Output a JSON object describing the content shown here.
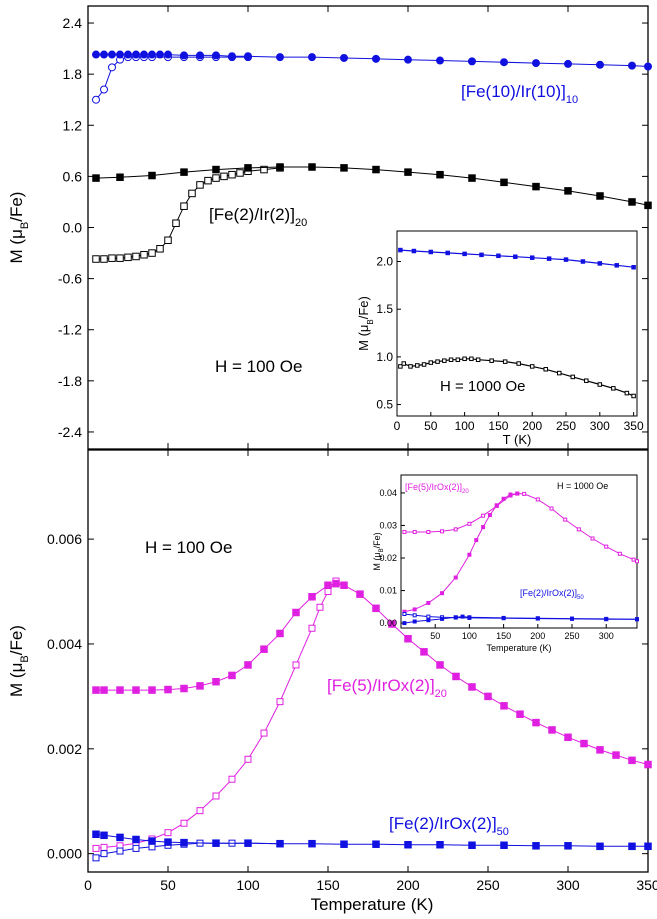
{
  "figure": {
    "xlabel": "Temperature (K)"
  },
  "chart_data": [
    {
      "type": "scatter",
      "panel": "top",
      "ylabel_main": "M (μ",
      "ylabel_sub": "B",
      "ylabel_tail": "/Fe)",
      "xlim": [
        0,
        350
      ],
      "ylim": [
        -2.6,
        2.6
      ],
      "yticks": [
        "-2.4",
        "-1.8",
        "-1.2",
        "-0.6",
        "0.0",
        "0.6",
        "1.2",
        "1.8",
        "2.4"
      ],
      "ytick_values": [
        -2.4,
        -1.8,
        -1.2,
        -0.6,
        0.0,
        0.6,
        1.2,
        1.8,
        2.4
      ],
      "field_label": "H = 100 Oe",
      "legend": "none",
      "series": [
        {
          "label_main": "[Fe(10)/Ir(10)]",
          "label_sub": "10",
          "color": "#1010e0",
          "marker": "circle",
          "fc": {
            "x": [
              5,
              10,
              15,
              20,
              25,
              30,
              35,
              40,
              45,
              50,
              60,
              70,
              80,
              90,
              100,
              120,
              140,
              160,
              180,
              200,
              220,
              240,
              260,
              280,
              300,
              320,
              340,
              350
            ],
            "y": [
              2.03,
              2.03,
              2.03,
              2.03,
              2.03,
              2.03,
              2.03,
              2.03,
              2.03,
              2.03,
              2.02,
              2.02,
              2.02,
              2.01,
              2.01,
              2.0,
              2.0,
              1.99,
              1.98,
              1.97,
              1.96,
              1.95,
              1.94,
              1.93,
              1.92,
              1.91,
              1.9,
              1.89
            ]
          },
          "zfc": {
            "x": [
              5,
              10,
              15,
              20,
              25,
              30,
              35,
              40,
              50,
              60,
              70,
              80,
              90,
              100
            ],
            "y": [
              1.5,
              1.62,
              1.88,
              1.97,
              2.0,
              2.0,
              2.0,
              2.0,
              2.0,
              2.0,
              2.0,
              2.0,
              2.0,
              2.0
            ]
          }
        },
        {
          "label_main": "[Fe(2)/Ir(2)]",
          "label_sub": "20",
          "color": "#000000",
          "marker": "square",
          "fc": {
            "x": [
              5,
              20,
              40,
              60,
              80,
              100,
              120,
              140,
              160,
              180,
              200,
              220,
              240,
              260,
              280,
              300,
              320,
              340,
              350
            ],
            "y": [
              0.58,
              0.59,
              0.61,
              0.65,
              0.68,
              0.7,
              0.71,
              0.71,
              0.7,
              0.68,
              0.65,
              0.62,
              0.58,
              0.53,
              0.48,
              0.43,
              0.37,
              0.3,
              0.26
            ]
          },
          "zfc": {
            "x": [
              5,
              10,
              15,
              20,
              25,
              30,
              35,
              40,
              45,
              50,
              55,
              60,
              65,
              70,
              75,
              80,
              85,
              90,
              95,
              100,
              110,
              120
            ],
            "y": [
              -0.37,
              -0.37,
              -0.36,
              -0.36,
              -0.35,
              -0.34,
              -0.32,
              -0.3,
              -0.25,
              -0.15,
              0.05,
              0.25,
              0.4,
              0.5,
              0.55,
              0.58,
              0.6,
              0.62,
              0.64,
              0.66,
              0.68,
              0.7
            ]
          }
        }
      ],
      "inset": {
        "xlabel": "T (K)",
        "ylabel_main": "M (μ",
        "ylabel_sub": "B",
        "ylabel_tail": "/Fe)",
        "field_label": "H = 1000 Oe",
        "xlim": [
          0,
          355
        ],
        "ylim": [
          0.38,
          2.32
        ],
        "xticks": [
          "0",
          "50",
          "100",
          "150",
          "200",
          "250",
          "300",
          "350"
        ],
        "xtick_values": [
          0,
          50,
          100,
          150,
          200,
          250,
          300,
          350
        ],
        "yticks": [
          "0.5",
          "1.0",
          "1.5",
          "2.0"
        ],
        "ytick_values": [
          0.5,
          1.0,
          1.5,
          2.0
        ],
        "series": [
          {
            "color": "#1010e0",
            "x": [
              5,
              25,
              50,
              75,
              100,
              125,
              150,
              175,
              200,
              225,
              250,
              275,
              300,
              325,
              350
            ],
            "y": [
              2.12,
              2.11,
              2.1,
              2.09,
              2.08,
              2.07,
              2.06,
              2.05,
              2.04,
              2.03,
              2.02,
              2.0,
              1.98,
              1.96,
              1.94
            ]
          },
          {
            "color": "#000000",
            "x": [
              5,
              10,
              20,
              30,
              40,
              50,
              60,
              70,
              80,
              90,
              100,
              110,
              120,
              140,
              160,
              180,
              200,
              220,
              240,
              260,
              280,
              300,
              320,
              340,
              350
            ],
            "y": [
              0.9,
              0.93,
              0.9,
              0.91,
              0.92,
              0.94,
              0.95,
              0.96,
              0.97,
              0.97,
              0.98,
              0.98,
              0.97,
              0.96,
              0.95,
              0.93,
              0.9,
              0.87,
              0.83,
              0.79,
              0.75,
              0.71,
              0.67,
              0.62,
              0.59
            ]
          }
        ]
      }
    },
    {
      "type": "scatter",
      "panel": "bottom",
      "ylabel_main": "M (μ",
      "ylabel_sub": "B",
      "ylabel_tail": "/Fe)",
      "xlim": [
        0,
        350
      ],
      "ylim": [
        -0.00035,
        0.0077
      ],
      "xticks": [
        "0",
        "50",
        "100",
        "150",
        "200",
        "250",
        "300",
        "350"
      ],
      "xtick_values": [
        0,
        50,
        100,
        150,
        200,
        250,
        300,
        350
      ],
      "yticks": [
        "0.000",
        "0.002",
        "0.004",
        "0.006"
      ],
      "ytick_values": [
        0.0,
        0.002,
        0.004,
        0.006
      ],
      "field_label": "H = 100 Oe",
      "legend": "none",
      "series": [
        {
          "label_main": "[Fe(5)/IrOx(2)]",
          "label_sub": "20",
          "color": "#e020e0",
          "marker": "square",
          "fc": {
            "x": [
              5,
              10,
              20,
              30,
              40,
              50,
              60,
              70,
              80,
              90,
              100,
              110,
              120,
              130,
              140,
              150,
              155,
              160,
              170,
              180,
              190,
              200,
              210,
              220,
              230,
              240,
              250,
              260,
              270,
              280,
              290,
              300,
              310,
              320,
              330,
              340,
              350
            ],
            "y": [
              0.00312,
              0.00312,
              0.00312,
              0.00312,
              0.00312,
              0.00313,
              0.00315,
              0.0032,
              0.00328,
              0.0034,
              0.0036,
              0.0039,
              0.0042,
              0.0046,
              0.0049,
              0.00512,
              0.00515,
              0.00512,
              0.00495,
              0.00468,
              0.00438,
              0.0041,
              0.00385,
              0.0036,
              0.00338,
              0.00318,
              0.003,
              0.00282,
              0.00266,
              0.0025,
              0.00236,
              0.00222,
              0.0021,
              0.00198,
              0.00188,
              0.00178,
              0.0017
            ]
          },
          "zfc": {
            "x": [
              5,
              10,
              20,
              30,
              40,
              50,
              60,
              70,
              80,
              90,
              100,
              110,
              120,
              130,
              140,
              145,
              150,
              155,
              160
            ],
            "y": [
              0.0001,
              0.00012,
              0.00015,
              0.0002,
              0.00028,
              0.0004,
              0.00058,
              0.00082,
              0.0011,
              0.00142,
              0.0018,
              0.0023,
              0.0029,
              0.0036,
              0.0043,
              0.0047,
              0.005,
              0.0052,
              0.00512
            ]
          }
        },
        {
          "label_main": "[Fe(2)/IrOx(2)]",
          "label_sub": "50",
          "color": "#1010e0",
          "marker": "square",
          "fc": {
            "x": [
              5,
              10,
              20,
              30,
              40,
              50,
              60,
              80,
              100,
              120,
              140,
              160,
              180,
              200,
              220,
              240,
              260,
              280,
              300,
              320,
              340,
              350
            ],
            "y": [
              0.00037,
              0.00035,
              0.00031,
              0.00027,
              0.00024,
              0.00022,
              0.00021,
              0.0002,
              0.0002,
              0.00019,
              0.00019,
              0.00018,
              0.00018,
              0.00017,
              0.00017,
              0.00016,
              0.00016,
              0.00015,
              0.00015,
              0.00014,
              0.00014,
              0.00014
            ]
          },
          "zfc": {
            "x": [
              5,
              10,
              20,
              30,
              40,
              50,
              60,
              70,
              80,
              90,
              100,
              120
            ],
            "y": [
              -8e-05,
              0.0,
              5e-05,
              0.0001,
              0.00013,
              0.00016,
              0.00018,
              0.0002,
              0.0002,
              0.0002,
              0.0002,
              0.00019
            ]
          }
        }
      ],
      "inset": {
        "xlabel": "Temperature (K)",
        "ylabel_main": "M (μ",
        "ylabel_sub": "B",
        "ylabel_tail": "/Fe)",
        "field_label": "H = 1000 Oe",
        "xlim": [
          0,
          345
        ],
        "ylim": [
          -0.0015,
          0.0455
        ],
        "xticks": [
          "50",
          "100",
          "150",
          "200",
          "250",
          "300"
        ],
        "xtick_values": [
          50,
          100,
          150,
          200,
          250,
          300
        ],
        "yticks": [
          "0.00",
          "0.01",
          "0.02",
          "0.03",
          "0.04"
        ],
        "ytick_values": [
          0.0,
          0.01,
          0.02,
          0.03,
          0.04
        ],
        "series_labels": [
          {
            "main": "[Fe(5)/IrOx(2)]",
            "sub": "20",
            "color": "#e020e0"
          },
          {
            "main": "[Fe(2)/IrOx(2)]",
            "sub": "50",
            "color": "#1010e0"
          }
        ],
        "series": [
          {
            "color": "#e020e0",
            "x": [
              5,
              20,
              40,
              60,
              80,
              100,
              120,
              140,
              160,
              170,
              180,
              200,
              220,
              240,
              260,
              280,
              300,
              320,
              340,
              345
            ],
            "y": [
              0.028,
              0.028,
              0.028,
              0.0282,
              0.0288,
              0.0305,
              0.033,
              0.036,
              0.0392,
              0.0398,
              0.0397,
              0.038,
              0.0352,
              0.0318,
              0.0288,
              0.026,
              0.0235,
              0.0213,
              0.0195,
              0.019
            ]
          },
          {
            "color": "#e020e0",
            "x": [
              5,
              20,
              40,
              60,
              80,
              100,
              110,
              120,
              130,
              140,
              150,
              160,
              170
            ],
            "y": [
              0.0035,
              0.0042,
              0.0062,
              0.0092,
              0.014,
              0.021,
              0.0255,
              0.0295,
              0.0332,
              0.0362,
              0.0382,
              0.0395,
              0.0398
            ]
          },
          {
            "color": "#1010e0",
            "x": [
              5,
              20,
              40,
              60,
              80,
              100,
              150,
              200,
              250,
              300,
              345
            ],
            "y": [
              0.0028,
              0.0024,
              0.002,
              0.0018,
              0.0017,
              0.0016,
              0.0015,
              0.0014,
              0.0013,
              0.0012,
              0.0012
            ]
          },
          {
            "color": "#1010e0",
            "x": [
              5,
              20,
              40,
              60,
              80,
              90,
              100,
              150,
              200,
              250,
              300,
              345
            ],
            "y": [
              0.0,
              0.0005,
              0.0009,
              0.0013,
              0.0018,
              0.002,
              0.0018,
              0.0016,
              0.0015,
              0.0014,
              0.0013,
              0.0012
            ]
          }
        ]
      }
    }
  ]
}
